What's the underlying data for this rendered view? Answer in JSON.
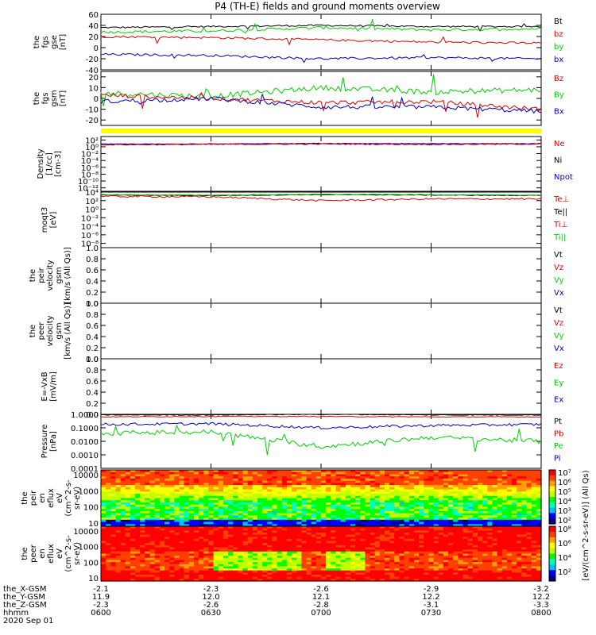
{
  "title": "P4 (TH-E) fields and ground moments overview",
  "colors": {
    "black": "#000000",
    "red": "#e00000",
    "green": "#00d000",
    "blue": "#0000c0",
    "yellow": "#ffff00"
  },
  "panels": [
    {
      "id": "fgs",
      "ylabel": [
        "the",
        "fgs",
        "gse",
        "[nT]"
      ],
      "ticks": [
        "60",
        "40",
        "20",
        "0",
        "-20",
        "-40"
      ],
      "tickvals": [
        60,
        40,
        20,
        0,
        -20,
        -40
      ],
      "ylim": [
        -40,
        60
      ],
      "legend": [
        {
          "text": "Bt",
          "color": "black"
        },
        {
          "text": "bz",
          "color": "red"
        },
        {
          "text": "by",
          "color": "green"
        },
        {
          "text": "bx",
          "color": "blue"
        }
      ]
    },
    {
      "id": "fgs-gsm",
      "ylabel": [
        "the",
        "fgs",
        "gsm",
        "[nT]"
      ],
      "ticks": [
        "20",
        "10",
        "0",
        "-10",
        "-20"
      ],
      "tickvals": [
        20,
        10,
        0,
        -10,
        -20
      ],
      "ylim": [
        -25,
        25
      ],
      "legend": [
        {
          "text": "Bz",
          "color": "red"
        },
        {
          "text": "By",
          "color": "green"
        },
        {
          "text": "Bx",
          "color": "blue"
        }
      ]
    },
    {
      "id": "density",
      "ylabel": [
        "Density",
        "[1/cc]",
        "[cm-3]"
      ],
      "ticks": [
        "10²",
        "10⁰",
        "10⁻²",
        "10⁻⁴",
        "10⁻⁶",
        "10⁻⁸",
        "10⁻¹⁰",
        "10⁻¹²"
      ],
      "tickvals": [
        2,
        0,
        -2,
        -4,
        -6,
        -8,
        -10,
        -12
      ],
      "ylim": [
        -13,
        3
      ],
      "legend": [
        {
          "text": "Ne",
          "color": "red"
        },
        {
          "text": "Ni",
          "color": "black"
        },
        {
          "text": "Npot",
          "color": "blue"
        }
      ]
    },
    {
      "id": "temp",
      "ylabel": [
        "moqt3",
        "[eV]"
      ],
      "ticks": [
        "10⁴",
        "10²",
        "10⁰",
        "10⁻²",
        "10⁻⁴",
        "10⁻⁶",
        "10⁻⁸"
      ],
      "tickvals": [
        4,
        2,
        0,
        -2,
        -4,
        -6,
        -8
      ],
      "ylim": [
        -9,
        4
      ],
      "legend": [
        {
          "text": "Te⊥",
          "color": "red"
        },
        {
          "text": "Te||",
          "color": "black"
        },
        {
          "text": "Ti⊥",
          "color": "red"
        },
        {
          "text": "Ti||",
          "color": "green"
        }
      ]
    },
    {
      "id": "peir-vel",
      "ylabel": [
        "the",
        "peir",
        "velocity",
        "gsm",
        "[km/s (All Qs)]"
      ],
      "ticks": [
        "1.0",
        "0.8",
        "0.6",
        "0.4",
        "0.2",
        "0.0"
      ],
      "tickvals": [
        1,
        0.8,
        0.6,
        0.4,
        0.2,
        0
      ],
      "ylim": [
        0,
        1
      ],
      "legend": [
        {
          "text": "Vt",
          "color": "black"
        },
        {
          "text": "Vz",
          "color": "red"
        },
        {
          "text": "Vy",
          "color": "green"
        },
        {
          "text": "Vx",
          "color": "blue"
        }
      ]
    },
    {
      "id": "peer-vel",
      "ylabel": [
        "the",
        "peer",
        "velocity",
        "gsm",
        "[km/s (All Qs)]"
      ],
      "ticks": [
        "1.0",
        "0.8",
        "0.6",
        "0.4",
        "0.2",
        "0.0"
      ],
      "tickvals": [
        1,
        0.8,
        0.6,
        0.4,
        0.2,
        0
      ],
      "ylim": [
        0,
        1
      ],
      "legend": [
        {
          "text": "Vt",
          "color": "black"
        },
        {
          "text": "Vz",
          "color": "red"
        },
        {
          "text": "Vy",
          "color": "green"
        },
        {
          "text": "Vx",
          "color": "blue"
        }
      ]
    },
    {
      "id": "efield",
      "ylabel": [
        "E=-VxB",
        "[mV/m]"
      ],
      "ticks": [
        "1.0",
        "0.8",
        "0.6",
        "0.4",
        "0.2",
        "0.0"
      ],
      "tickvals": [
        1,
        0.8,
        0.6,
        0.4,
        0.2,
        0
      ],
      "ylim": [
        0,
        1
      ],
      "legend": [
        {
          "text": "Ez",
          "color": "red"
        },
        {
          "text": "Ey",
          "color": "green"
        },
        {
          "text": "Ex",
          "color": "blue"
        }
      ]
    },
    {
      "id": "pressure",
      "ylabel": [
        "Pressure",
        "[nPa]"
      ],
      "ticks": [
        "1.0000",
        "0.1000",
        "0.0100",
        "0.0010",
        "0.0001"
      ],
      "tickvals": [
        0,
        -1,
        -2,
        -3,
        -4
      ],
      "ylim": [
        -4,
        0
      ],
      "legend": [
        {
          "text": "Pt",
          "color": "black"
        },
        {
          "text": "Pb",
          "color": "red"
        },
        {
          "text": "Pe",
          "color": "green"
        },
        {
          "text": "Pi",
          "color": "blue"
        }
      ]
    },
    {
      "id": "peir-spec",
      "ylabel": [
        "the",
        "peir",
        "en",
        "eflux",
        "eV",
        "(cm^2-s-",
        "sr-eV)"
      ],
      "ticks": [
        "10000",
        "1000",
        "100",
        "10"
      ],
      "tickvals": [
        4,
        3,
        2,
        1
      ],
      "ylim": [
        0.8,
        4.3
      ]
    },
    {
      "id": "peer-spec",
      "ylabel": [
        "the",
        "peer",
        "en",
        "eflux",
        "eV",
        "(cm^2-s-",
        "sr-eV)"
      ],
      "ticks": [
        "10000",
        "1000",
        "100",
        "10"
      ],
      "tickvals": [
        4,
        3,
        2,
        1
      ],
      "ylim": [
        0.8,
        4.3
      ]
    }
  ],
  "colorbar": {
    "label": "[eV/(cm^2-s-sr-eV)] (All Qs)",
    "ticks": [
      "10⁷",
      "10⁶",
      "10⁵",
      "10⁴",
      "10³",
      "10²",
      "10⁸",
      "10⁶",
      "10⁴",
      "10²"
    ]
  },
  "xaxis": {
    "rows": [
      {
        "label": "the_X-GSM",
        "values": [
          "-2.1",
          "-2.3",
          "-2.6",
          "-2.9",
          "-3.2"
        ]
      },
      {
        "label": "the_Y-GSM",
        "values": [
          "11.9",
          "12.0",
          "12.1",
          "12.2",
          "12.2"
        ]
      },
      {
        "label": "the_Z-GSM",
        "values": [
          "-2.3",
          "-2.6",
          "-2.8",
          "-3.1",
          "-3.3"
        ]
      },
      {
        "label": "hhmm",
        "values": [
          "0600",
          "0630",
          "0700",
          "0730",
          "0800"
        ]
      }
    ],
    "date": "2020 Sep 01"
  },
  "chart_data": {
    "type": "line",
    "title": "P4 (TH-E) fields and ground moments overview",
    "x": [
      "0600",
      "0630",
      "0700",
      "0730",
      "0800"
    ],
    "series": [
      {
        "name": "Bt",
        "panel": "fgs",
        "values": [
          36,
          38,
          40,
          38,
          38
        ]
      },
      {
        "name": "bz",
        "panel": "fgs",
        "values": [
          20,
          18,
          14,
          10,
          8
        ]
      },
      {
        "name": "by",
        "panel": "fgs",
        "values": [
          28,
          30,
          36,
          32,
          34
        ]
      },
      {
        "name": "bx",
        "panel": "fgs",
        "values": [
          -12,
          -14,
          -20,
          -18,
          -20
        ]
      },
      {
        "name": "Bz",
        "panel": "fgs-gsm",
        "values": [
          3,
          0,
          -4,
          -3,
          -10
        ]
      },
      {
        "name": "By",
        "panel": "fgs-gsm",
        "values": [
          5,
          2,
          10,
          6,
          8
        ]
      },
      {
        "name": "Bx",
        "panel": "fgs-gsm",
        "values": [
          -3,
          0,
          -8,
          -8,
          -12
        ]
      },
      {
        "name": "Pt",
        "panel": "pressure",
        "values": [
          0.9,
          0.9,
          1.0,
          0.9,
          0.9
        ]
      },
      {
        "name": "Pb",
        "panel": "pressure",
        "values": [
          0.65,
          0.7,
          0.7,
          0.65,
          0.65
        ]
      },
      {
        "name": "Pe",
        "panel": "pressure",
        "values": [
          0.04,
          0.05,
          0.004,
          0.02,
          0.01
        ]
      },
      {
        "name": "Pi",
        "panel": "pressure",
        "values": [
          0.18,
          0.2,
          0.1,
          0.15,
          0.18
        ]
      }
    ]
  }
}
